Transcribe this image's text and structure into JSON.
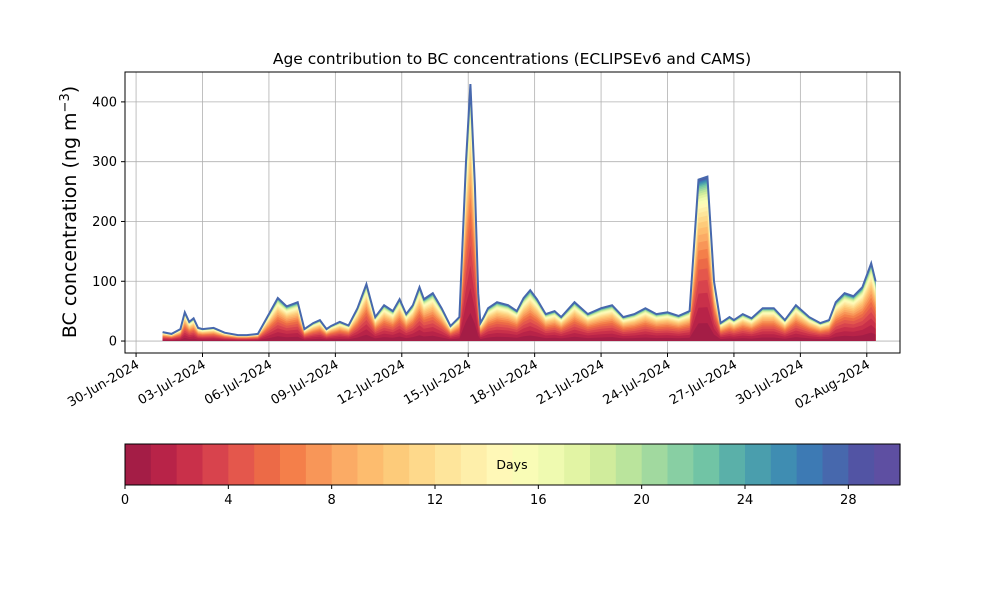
{
  "chart_data": {
    "type": "area",
    "title": "Age contribution to BC concentrations (ECLIPSEv6 and CAMS)",
    "ylabel": "BC concentration (ng m",
    "ylabel_superscript": "−3",
    "ylabel_suffix": ")",
    "ylim": [
      -20,
      450
    ],
    "yticks": [
      0,
      100,
      200,
      300,
      400
    ],
    "xtick_labels": [
      "30-Jun-2024",
      "03-Jul-2024",
      "06-Jul-2024",
      "09-Jul-2024",
      "12-Jul-2024",
      "15-Jul-2024",
      "18-Jul-2024",
      "21-Jul-2024",
      "24-Jul-2024",
      "27-Jul-2024",
      "30-Jul-2024",
      "02-Aug-2024"
    ],
    "xtick_days": [
      0,
      3,
      6,
      9,
      12,
      15,
      18,
      21,
      24,
      27,
      30,
      33
    ],
    "x_start_label": "30-Jun-2024",
    "grid": true,
    "total_series": {
      "name": "total",
      "day": [
        1.2,
        1.6,
        2.0,
        2.2,
        2.4,
        2.6,
        2.8,
        3.0,
        3.5,
        4.0,
        4.6,
        5.0,
        5.5,
        6.0,
        6.4,
        6.8,
        7.3,
        7.6,
        8.0,
        8.3,
        8.6,
        8.8,
        9.2,
        9.6,
        10.0,
        10.4,
        10.8,
        11.2,
        11.6,
        11.9,
        12.2,
        12.5,
        12.8,
        13.0,
        13.4,
        13.8,
        14.2,
        14.6,
        14.9,
        15.1,
        15.3,
        15.45,
        15.55,
        15.7,
        15.9,
        16.3,
        16.8,
        17.2,
        17.5,
        17.8,
        18.1,
        18.5,
        18.9,
        19.2,
        19.8,
        20.4,
        21.0,
        21.5,
        22.0,
        22.5,
        23.0,
        23.5,
        24.0,
        24.5,
        25.0,
        25.4,
        25.8,
        26.1,
        26.4,
        26.8,
        27.0,
        27.4,
        27.8,
        28.3,
        28.8,
        29.3,
        29.8,
        30.4,
        30.9,
        31.3,
        31.6,
        32.0,
        32.4,
        32.8,
        33.2,
        33.4
      ],
      "total": [
        15,
        12,
        20,
        48,
        32,
        38,
        22,
        20,
        22,
        14,
        10,
        10,
        12,
        45,
        72,
        58,
        65,
        20,
        30,
        35,
        20,
        25,
        32,
        26,
        55,
        95,
        40,
        60,
        50,
        70,
        45,
        60,
        90,
        70,
        80,
        55,
        25,
        40,
        300,
        430,
        260,
        80,
        30,
        40,
        55,
        65,
        60,
        50,
        72,
        85,
        70,
        45,
        50,
        40,
        65,
        45,
        55,
        60,
        40,
        45,
        55,
        45,
        48,
        42,
        50,
        270,
        275,
        100,
        30,
        40,
        35,
        45,
        38,
        55,
        55,
        35,
        60,
        40,
        30,
        35,
        65,
        80,
        75,
        90,
        130,
        100
      ]
    },
    "colorbar": {
      "label": "Days",
      "min": 0,
      "max": 30,
      "ticks": [
        0,
        4,
        8,
        12,
        16,
        20,
        24,
        28
      ],
      "colors": [
        "#a41d46",
        "#b82348",
        "#c9304a",
        "#d8434d",
        "#e4574c",
        "#ec6a47",
        "#f47f4a",
        "#f89658",
        "#fbab65",
        "#fdbc6e",
        "#fdcb7a",
        "#fed98b",
        "#fee59b",
        "#feefaa",
        "#fff8b7",
        "#f9fcb6",
        "#effab0",
        "#e2f4a4",
        "#d0ec9c",
        "#bae49c",
        "#a1d99f",
        "#88cfa3",
        "#71c4a5",
        "#5ab0a9",
        "#4a9ead",
        "#3f8db2",
        "#3d7ab4",
        "#4768ad",
        "#5254a4",
        "#5e4fa2"
      ]
    }
  }
}
